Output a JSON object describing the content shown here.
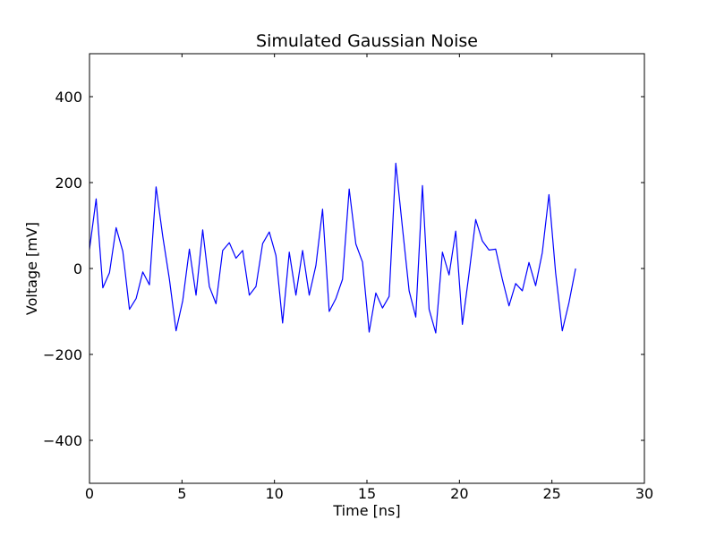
{
  "chart_data": {
    "type": "line",
    "title": "Simulated Gaussian Noise",
    "xlabel": "Time [ns]",
    "ylabel": "Voltage [mV]",
    "xlim": [
      0,
      30
    ],
    "ylim": [
      -500,
      500
    ],
    "xticks": [
      0,
      5,
      10,
      15,
      20,
      25,
      30
    ],
    "xtick_labels": [
      "0",
      "5",
      "10",
      "15",
      "20",
      "25",
      "30"
    ],
    "yticks": [
      -400,
      -200,
      0,
      200,
      400
    ],
    "ytick_labels": [
      "−400",
      "−200",
      "0",
      "200",
      "400"
    ],
    "grid": false,
    "series": [
      {
        "color": "#0000ff",
        "x": [
          0.0,
          0.36,
          0.72,
          1.08,
          1.44,
          1.8,
          2.16,
          2.52,
          2.88,
          3.24,
          3.6,
          3.96,
          4.32,
          4.68,
          5.04,
          5.4,
          5.76,
          6.12,
          6.48,
          6.84,
          7.2,
          7.56,
          7.92,
          8.28,
          8.64,
          9.0,
          9.36,
          9.72,
          10.08,
          10.44,
          10.8,
          11.16,
          11.52,
          11.88,
          12.24,
          12.6,
          12.96,
          13.32,
          13.68,
          14.04,
          14.4,
          14.76,
          15.12,
          15.48,
          15.84,
          16.2,
          16.56,
          16.92,
          17.28,
          17.64,
          18.0,
          18.36,
          18.72,
          19.08,
          19.44,
          19.8,
          20.16,
          20.52,
          20.88,
          21.24,
          21.6,
          21.96,
          22.32,
          22.68,
          23.04,
          23.4,
          23.76,
          24.12,
          24.48,
          24.84,
          25.2,
          25.56,
          25.92,
          26.28
        ],
        "y": [
          45,
          162,
          -45,
          -10,
          95,
          40,
          -95,
          -70,
          -8,
          -38,
          190,
          75,
          -25,
          -145,
          -75,
          45,
          -62,
          90,
          -42,
          -82,
          42,
          60,
          24,
          42,
          -62,
          -42,
          58,
          85,
          30,
          -127,
          38,
          -62,
          42,
          -62,
          7,
          138,
          -100,
          -70,
          -25,
          185,
          57,
          15,
          -148,
          -57,
          -92,
          -65,
          245,
          95,
          -52,
          -113,
          193,
          -95,
          -150,
          38,
          -15,
          87,
          -130,
          -12,
          114,
          64,
          43,
          45,
          -25,
          -87,
          -35,
          -52,
          14,
          -40,
          37,
          172,
          -10,
          -145,
          -80,
          0
        ]
      }
    ]
  }
}
